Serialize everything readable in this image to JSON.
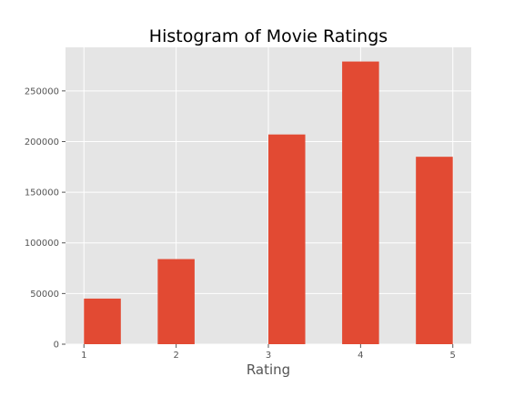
{
  "chart_data": {
    "type": "bar",
    "title": "Histogram of Movie Ratings",
    "xlabel": "Rating",
    "ylabel": "",
    "x_range": [
      0.8,
      5.2
    ],
    "ylim": [
      0,
      293000
    ],
    "x_ticks": [
      1,
      2,
      3,
      4,
      5
    ],
    "y_ticks": [
      0,
      50000,
      100000,
      150000,
      200000,
      250000
    ],
    "bin_width": 0.4,
    "bars": [
      {
        "x_start": 1.0,
        "x_end": 1.4,
        "value": 45000
      },
      {
        "x_start": 1.8,
        "x_end": 2.2,
        "value": 84000
      },
      {
        "x_start": 3.0,
        "x_end": 3.4,
        "value": 207000
      },
      {
        "x_start": 3.8,
        "x_end": 4.2,
        "value": 279000
      },
      {
        "x_start": 4.6,
        "x_end": 5.0,
        "value": 185000
      }
    ],
    "grid": true,
    "colors": {
      "bar": "#E24A33",
      "plot_background": "#E5E5E5",
      "grid": "#FFFFFF",
      "text": "#555555",
      "title": "#000000"
    }
  }
}
